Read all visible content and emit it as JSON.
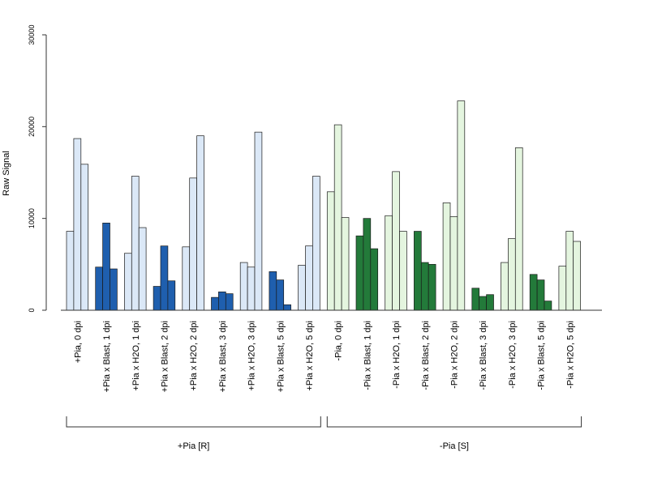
{
  "chart_data": {
    "type": "bar",
    "ylabel": "Raw Signal",
    "ylim": [
      0,
      30000
    ],
    "yticks": [
      0,
      10000,
      20000,
      30000
    ],
    "grid": false,
    "legend": "none",
    "categories": [
      "+Pia, 0 dpi",
      "+Pia x Blast, 1 dpi",
      "+Pia x H2O, 1 dpi",
      "+Pia x Blast, 2 dpi",
      "+Pia x H2O, 2 dpi",
      "+Pia x Blast, 3 dpi",
      "+Pia x H2O, 3 dpi",
      "+Pia x Blast, 5 dpi",
      "+Pia x H2O, 5 dpi",
      "-Pia, 0 dpi",
      "-Pia x Blast, 1 dpi",
      "-Pia x H2O, 1 dpi",
      "-Pia x Blast, 2 dpi",
      "-Pia x H2O, 2 dpi",
      "-Pia x Blast, 3 dpi",
      "-Pia x H2O, 3 dpi",
      "-Pia x Blast, 5 dpi",
      "-Pia x H2O, 5 dpi"
    ],
    "replicates": [
      [
        8600,
        18700,
        15900
      ],
      [
        4700,
        9500,
        4500
      ],
      [
        6200,
        14600,
        9000
      ],
      [
        2600,
        7000,
        3200
      ],
      [
        6900,
        14400,
        19000
      ],
      [
        1400,
        2000,
        1800
      ],
      [
        5200,
        4700,
        19400
      ],
      [
        4200,
        3300,
        600
      ],
      [
        4900,
        7000,
        14600
      ],
      [
        12900,
        20200,
        10100
      ],
      [
        8100,
        10000,
        6700
      ],
      [
        10300,
        15100,
        8600
      ],
      [
        8600,
        5200,
        5000
      ],
      [
        11700,
        10200,
        22800
      ],
      [
        2400,
        1500,
        1700
      ],
      [
        5200,
        7800,
        17700
      ],
      [
        3900,
        3300,
        1000
      ],
      [
        4800,
        8600,
        7500
      ]
    ],
    "bar_colors": [
      "#dbe8f7",
      "#1f5fae",
      "#dbe8f7",
      "#1f5fae",
      "#dbe8f7",
      "#1f5fae",
      "#dbe8f7",
      "#1f5fae",
      "#dbe8f7",
      "#e4f5df",
      "#237a3a",
      "#e4f5df",
      "#237a3a",
      "#e4f5df",
      "#237a3a",
      "#e4f5df",
      "#237a3a",
      "#e4f5df"
    ],
    "groups": [
      {
        "label": "+Pia [R]",
        "start": 0,
        "end": 8
      },
      {
        "label": "-Pia [S]",
        "start": 9,
        "end": 17
      }
    ]
  }
}
